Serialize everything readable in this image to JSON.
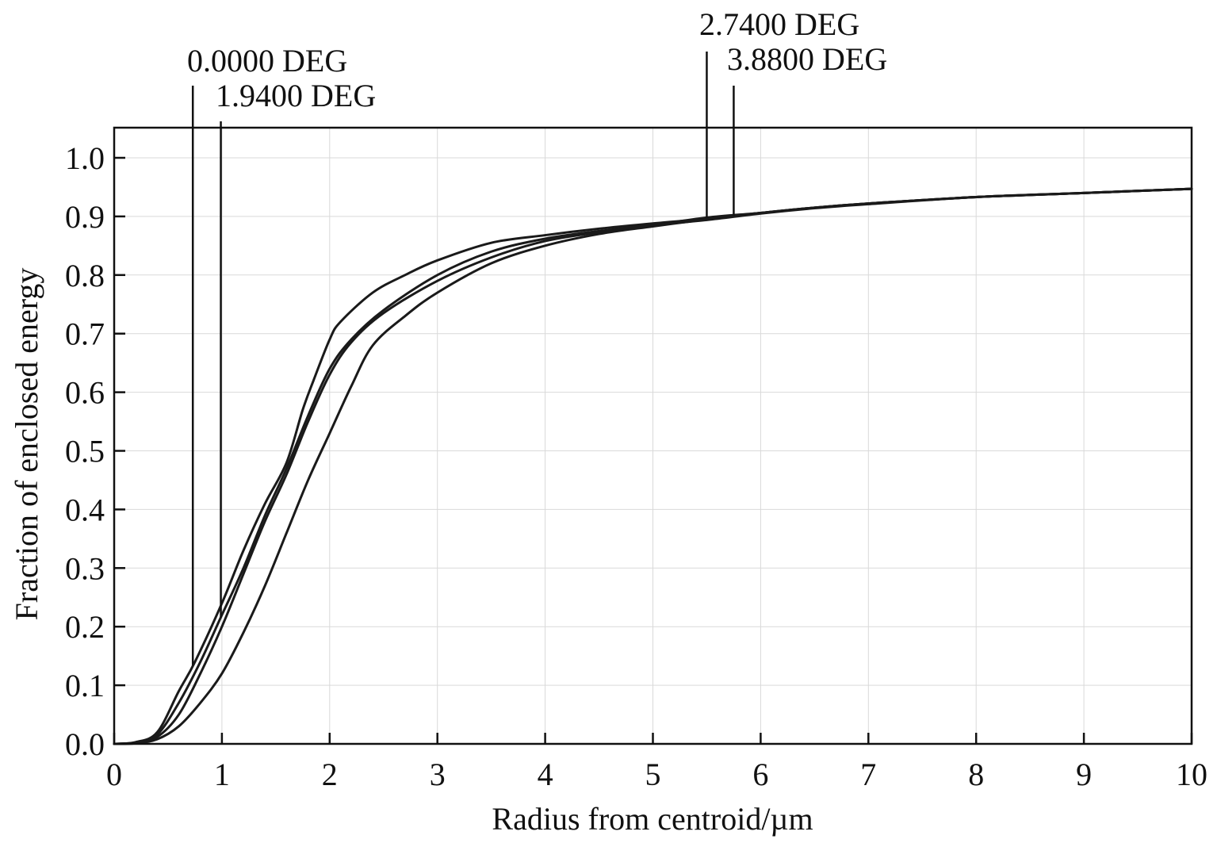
{
  "chart_data": {
    "type": "line",
    "title": "",
    "xlabel": "Radius from centroid/µm",
    "ylabel": "Fraction of enclosed energy",
    "xlim": [
      0,
      10
    ],
    "ylim": [
      0,
      1.05
    ],
    "x_ticks": [
      "0",
      "1",
      "2",
      "3",
      "4",
      "5",
      "6",
      "7",
      "8",
      "9",
      "10"
    ],
    "y_ticks": [
      "0.0",
      "0.1",
      "0.2",
      "0.3",
      "0.4",
      "0.5",
      "0.6",
      "0.7",
      "0.8",
      "0.9",
      "1.0"
    ],
    "grid": true,
    "legend": "none",
    "series": [
      {
        "name": "0.0000 DEG",
        "label_x": 0.73,
        "points": [
          [
            0,
            0
          ],
          [
            0.2,
            0.003
          ],
          [
            0.4,
            0.02
          ],
          [
            0.6,
            0.09
          ],
          [
            0.75,
            0.14
          ],
          [
            1.0,
            0.24
          ],
          [
            1.2,
            0.33
          ],
          [
            1.4,
            0.41
          ],
          [
            1.6,
            0.48
          ],
          [
            1.75,
            0.57
          ],
          [
            1.85,
            0.62
          ],
          [
            2.0,
            0.69
          ],
          [
            2.1,
            0.72
          ],
          [
            2.4,
            0.77
          ],
          [
            2.7,
            0.8
          ],
          [
            3.0,
            0.825
          ],
          [
            3.5,
            0.855
          ],
          [
            4.0,
            0.868
          ],
          [
            4.5,
            0.879
          ],
          [
            5.0,
            0.888
          ],
          [
            5.5,
            0.896
          ],
          [
            6.0,
            0.906
          ],
          [
            6.5,
            0.915
          ],
          [
            7.0,
            0.922
          ],
          [
            8.0,
            0.933
          ],
          [
            9.0,
            0.94
          ],
          [
            10.0,
            0.947
          ]
        ]
      },
      {
        "name": "1.9400 DEG",
        "label_x": 0.99,
        "points": [
          [
            0,
            0
          ],
          [
            0.2,
            0.002
          ],
          [
            0.4,
            0.016
          ],
          [
            0.6,
            0.07
          ],
          [
            0.8,
            0.14
          ],
          [
            1.0,
            0.22
          ],
          [
            1.2,
            0.3
          ],
          [
            1.4,
            0.39
          ],
          [
            1.6,
            0.47
          ],
          [
            1.8,
            0.56
          ],
          [
            2.0,
            0.64
          ],
          [
            2.2,
            0.69
          ],
          [
            2.5,
            0.74
          ],
          [
            3.0,
            0.8
          ],
          [
            3.5,
            0.84
          ],
          [
            4.0,
            0.862
          ],
          [
            4.5,
            0.875
          ],
          [
            5.0,
            0.885
          ],
          [
            5.5,
            0.894
          ],
          [
            6.0,
            0.905
          ],
          [
            6.5,
            0.914
          ],
          [
            7.0,
            0.921
          ],
          [
            8.0,
            0.933
          ],
          [
            9.0,
            0.94
          ],
          [
            10.0,
            0.947
          ]
        ]
      },
      {
        "name": "2.7400 DEG",
        "label_x": 5.5,
        "points": [
          [
            0,
            0
          ],
          [
            0.2,
            0.002
          ],
          [
            0.4,
            0.012
          ],
          [
            0.6,
            0.05
          ],
          [
            0.8,
            0.12
          ],
          [
            1.0,
            0.2
          ],
          [
            1.2,
            0.29
          ],
          [
            1.4,
            0.38
          ],
          [
            1.6,
            0.46
          ],
          [
            1.8,
            0.55
          ],
          [
            2.0,
            0.63
          ],
          [
            2.2,
            0.685
          ],
          [
            2.5,
            0.735
          ],
          [
            3.0,
            0.79
          ],
          [
            3.5,
            0.83
          ],
          [
            4.0,
            0.858
          ],
          [
            4.5,
            0.873
          ],
          [
            5.0,
            0.885
          ],
          [
            5.5,
            0.898
          ],
          [
            6.0,
            0.906
          ],
          [
            6.5,
            0.915
          ],
          [
            7.0,
            0.922
          ],
          [
            8.0,
            0.933
          ],
          [
            9.0,
            0.94
          ],
          [
            10.0,
            0.947
          ]
        ]
      },
      {
        "name": "3.8800 DEG",
        "label_x": 5.75,
        "points": [
          [
            0,
            0
          ],
          [
            0.2,
            0.001
          ],
          [
            0.4,
            0.008
          ],
          [
            0.6,
            0.03
          ],
          [
            0.8,
            0.07
          ],
          [
            1.0,
            0.12
          ],
          [
            1.2,
            0.19
          ],
          [
            1.4,
            0.27
          ],
          [
            1.6,
            0.36
          ],
          [
            1.8,
            0.45
          ],
          [
            2.0,
            0.53
          ],
          [
            2.2,
            0.61
          ],
          [
            2.4,
            0.68
          ],
          [
            2.7,
            0.73
          ],
          [
            3.0,
            0.77
          ],
          [
            3.5,
            0.82
          ],
          [
            4.0,
            0.85
          ],
          [
            4.5,
            0.87
          ],
          [
            5.0,
            0.883
          ],
          [
            5.5,
            0.895
          ],
          [
            5.75,
            0.901
          ],
          [
            6.0,
            0.906
          ],
          [
            6.5,
            0.915
          ],
          [
            7.0,
            0.922
          ],
          [
            8.0,
            0.933
          ],
          [
            9.0,
            0.94
          ],
          [
            10.0,
            0.947
          ]
        ]
      }
    ]
  }
}
